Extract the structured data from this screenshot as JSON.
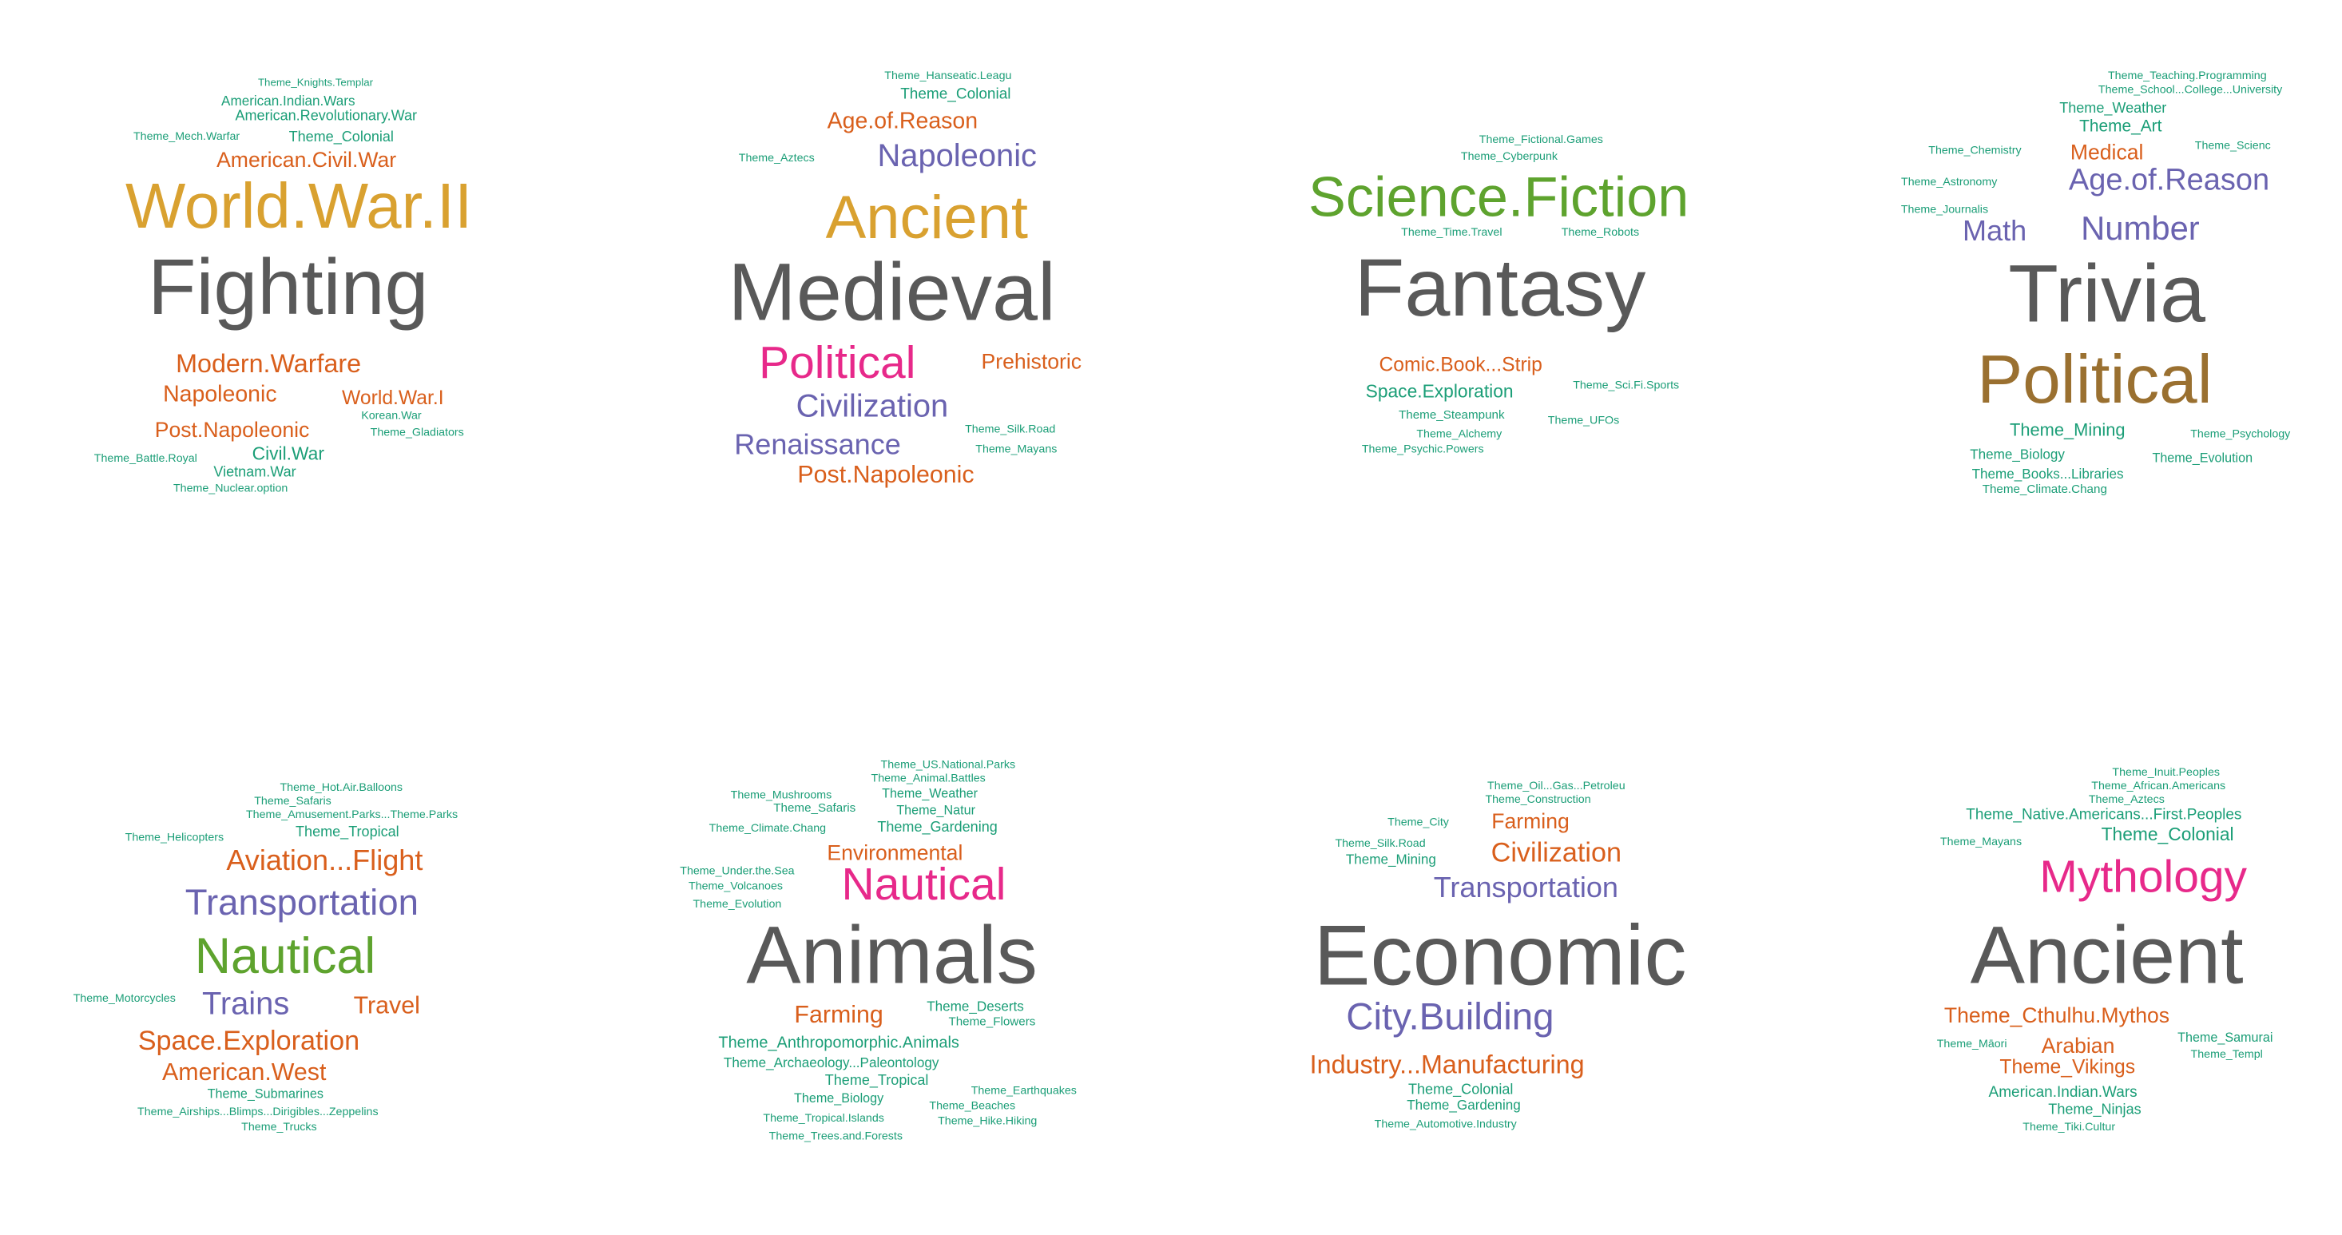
{
  "colors": {
    "gray": "#595959",
    "gold": "#d9a130",
    "orange": "#d95f1c",
    "teal": "#1b9e77",
    "purple": "#6a63b0",
    "magenta": "#e7298a",
    "green": "#5ea32e",
    "brown": "#9a7030"
  },
  "clouds": [
    {
      "name": "Fighting",
      "words": [
        {
          "t": "Theme_Knights.Templar",
          "s": 7,
          "c": "teal"
        },
        {
          "t": "American.Indian.Wars",
          "s": 9,
          "c": "teal"
        },
        {
          "t": "American.Revolutionary.War",
          "s": 9.5,
          "c": "teal"
        },
        {
          "t": "Theme_Mech.Warfar",
          "s": 7.5,
          "c": "teal"
        },
        {
          "t": "Theme_Colonial",
          "s": 9.5,
          "c": "teal"
        },
        {
          "t": "American.Civil.War",
          "s": 14,
          "c": "orange"
        },
        {
          "t": "World.War.II",
          "s": 42,
          "c": "gold"
        },
        {
          "t": "Fighting",
          "s": 52,
          "c": "gray"
        },
        {
          "t": "Modern.Warfare",
          "s": 17,
          "c": "orange"
        },
        {
          "t": "Napoleonic",
          "s": 15,
          "c": "orange"
        },
        {
          "t": "World.War.I",
          "s": 13,
          "c": "orange"
        },
        {
          "t": "Korean.War",
          "s": 7.5,
          "c": "teal"
        },
        {
          "t": "Post.Napoleonic",
          "s": 14,
          "c": "orange"
        },
        {
          "t": "Theme_Gladiators",
          "s": 7.5,
          "c": "teal"
        },
        {
          "t": "Theme_Battle.Royal",
          "s": 7.5,
          "c": "teal"
        },
        {
          "t": "Civil.War",
          "s": 12,
          "c": "teal"
        },
        {
          "t": "Vietnam.War",
          "s": 9.5,
          "c": "teal"
        },
        {
          "t": "Theme_Nuclear.option",
          "s": 7.5,
          "c": "teal"
        }
      ]
    },
    {
      "name": "Medieval",
      "words": [
        {
          "t": "Theme_Hanseatic.Leagu",
          "s": 7.5,
          "c": "teal"
        },
        {
          "t": "Theme_Colonial",
          "s": 10,
          "c": "teal"
        },
        {
          "t": "Age.of.Reason",
          "s": 15,
          "c": "orange"
        },
        {
          "t": "Theme_Aztecs",
          "s": 7.5,
          "c": "teal"
        },
        {
          "t": "Napoleonic",
          "s": 21,
          "c": "purple"
        },
        {
          "t": "Ancient",
          "s": 40,
          "c": "gold"
        },
        {
          "t": "Medieval",
          "s": 54,
          "c": "gray"
        },
        {
          "t": "Political",
          "s": 30,
          "c": "magenta"
        },
        {
          "t": "Prehistoric",
          "s": 14,
          "c": "orange"
        },
        {
          "t": "Civilization",
          "s": 21,
          "c": "purple"
        },
        {
          "t": "Theme_Silk.Road",
          "s": 7.5,
          "c": "teal"
        },
        {
          "t": "Renaissance",
          "s": 19,
          "c": "purple"
        },
        {
          "t": "Theme_Mayans",
          "s": 7.5,
          "c": "teal"
        },
        {
          "t": "Post.Napoleonic",
          "s": 16,
          "c": "orange"
        }
      ]
    },
    {
      "name": "Fantasy",
      "words": [
        {
          "t": "Theme_Fictional.Games",
          "s": 7.5,
          "c": "teal"
        },
        {
          "t": "Theme_Cyberpunk",
          "s": 7.5,
          "c": "teal"
        },
        {
          "t": "Science.Fiction",
          "s": 37,
          "c": "green"
        },
        {
          "t": "Theme_Time.Travel",
          "s": 7.5,
          "c": "teal"
        },
        {
          "t": "Theme_Robots",
          "s": 7.5,
          "c": "teal"
        },
        {
          "t": "Fantasy",
          "s": 54,
          "c": "gray"
        },
        {
          "t": "Comic.Book...Strip",
          "s": 13,
          "c": "orange"
        },
        {
          "t": "Theme_Sci.Fi.Sports",
          "s": 7.5,
          "c": "teal"
        },
        {
          "t": "Space.Exploration",
          "s": 12,
          "c": "teal"
        },
        {
          "t": "Theme_Steampunk",
          "s": 8,
          "c": "teal"
        },
        {
          "t": "Theme_UFOs",
          "s": 7.5,
          "c": "teal"
        },
        {
          "t": "Theme_Alchemy",
          "s": 7.5,
          "c": "teal"
        },
        {
          "t": "Theme_Psychic.Powers",
          "s": 7.5,
          "c": "teal"
        }
      ]
    },
    {
      "name": "Trivia",
      "words": [
        {
          "t": "Theme_Teaching.Programming",
          "s": 7.5,
          "c": "teal"
        },
        {
          "t": "Theme_School...College...University",
          "s": 7.5,
          "c": "teal"
        },
        {
          "t": "Theme_Weather",
          "s": 9.5,
          "c": "teal"
        },
        {
          "t": "Theme_Art",
          "s": 11,
          "c": "teal"
        },
        {
          "t": "Theme_Chemistry",
          "s": 7.5,
          "c": "teal"
        },
        {
          "t": "Medical",
          "s": 14,
          "c": "orange"
        },
        {
          "t": "Theme_Scienc",
          "s": 7.5,
          "c": "teal"
        },
        {
          "t": "Theme_Astronomy",
          "s": 7.5,
          "c": "teal"
        },
        {
          "t": "Age.of.Reason",
          "s": 20,
          "c": "purple"
        },
        {
          "t": "Theme_Journalis",
          "s": 7.5,
          "c": "teal"
        },
        {
          "t": "Math",
          "s": 19,
          "c": "purple"
        },
        {
          "t": "Number",
          "s": 22,
          "c": "purple"
        },
        {
          "t": "Trivia",
          "s": 54,
          "c": "gray"
        },
        {
          "t": "Political",
          "s": 45,
          "c": "brown"
        },
        {
          "t": "Theme_Mining",
          "s": 11.5,
          "c": "teal"
        },
        {
          "t": "Theme_Psychology",
          "s": 7.5,
          "c": "teal"
        },
        {
          "t": "Theme_Biology",
          "s": 9,
          "c": "teal"
        },
        {
          "t": "Theme_Evolution",
          "s": 8.5,
          "c": "teal"
        },
        {
          "t": "Theme_Books...Libraries",
          "s": 9,
          "c": "teal"
        },
        {
          "t": "Theme_Climate.Chang",
          "s": 8,
          "c": "teal"
        }
      ]
    },
    {
      "name": "Nautical",
      "words": [
        {
          "t": "Theme_Hot.Air.Balloons",
          "s": 7.5,
          "c": "teal"
        },
        {
          "t": "Theme_Safaris",
          "s": 7.5,
          "c": "teal"
        },
        {
          "t": "Theme_Amusement.Parks...Theme.Parks",
          "s": 7.5,
          "c": "teal"
        },
        {
          "t": "Theme_Helicopters",
          "s": 7.5,
          "c": "teal"
        },
        {
          "t": "Theme_Tropical",
          "s": 9.5,
          "c": "teal"
        },
        {
          "t": "Aviation...Flight",
          "s": 19,
          "c": "orange"
        },
        {
          "t": "Transportation",
          "s": 24,
          "c": "purple"
        },
        {
          "t": "Nautical",
          "s": 33,
          "c": "green"
        },
        {
          "t": "Theme_Motorcycles",
          "s": 7.5,
          "c": "teal"
        },
        {
          "t": "Trains",
          "s": 21,
          "c": "purple"
        },
        {
          "t": "Travel",
          "s": 16,
          "c": "orange"
        },
        {
          "t": "Space.Exploration",
          "s": 18,
          "c": "orange"
        },
        {
          "t": "American.West",
          "s": 16,
          "c": "orange"
        },
        {
          "t": "Theme_Submarines",
          "s": 8.5,
          "c": "teal"
        },
        {
          "t": "Theme_Airships...Blimps...Dirigibles...Zeppelins",
          "s": 7.5,
          "c": "teal"
        },
        {
          "t": "Theme_Trucks",
          "s": 7.5,
          "c": "teal"
        }
      ]
    },
    {
      "name": "Animals",
      "words": [
        {
          "t": "Theme_US.National.Parks",
          "s": 7.5,
          "c": "teal"
        },
        {
          "t": "Theme_Animal.Battles",
          "s": 7.5,
          "c": "teal"
        },
        {
          "t": "Theme_Mushrooms",
          "s": 7.5,
          "c": "teal"
        },
        {
          "t": "Theme_Weather",
          "s": 8.5,
          "c": "teal"
        },
        {
          "t": "Theme_Safaris",
          "s": 8,
          "c": "teal"
        },
        {
          "t": "Theme_Natur",
          "s": 8.5,
          "c": "teal"
        },
        {
          "t": "Theme_Climate.Chang",
          "s": 7.5,
          "c": "teal"
        },
        {
          "t": "Theme_Gardening",
          "s": 9.5,
          "c": "teal"
        },
        {
          "t": "Environmental",
          "s": 14,
          "c": "orange"
        },
        {
          "t": "Theme_Under.the.Sea",
          "s": 7.5,
          "c": "teal"
        },
        {
          "t": "Nautical",
          "s": 30,
          "c": "magenta"
        },
        {
          "t": "Theme_Volcanoes",
          "s": 7.5,
          "c": "teal"
        },
        {
          "t": "Theme_Evolution",
          "s": 7.5,
          "c": "teal"
        },
        {
          "t": "Animals",
          "s": 54,
          "c": "gray"
        },
        {
          "t": "Farming",
          "s": 16,
          "c": "orange"
        },
        {
          "t": "Theme_Deserts",
          "s": 9,
          "c": "teal"
        },
        {
          "t": "Theme_Flowers",
          "s": 8,
          "c": "teal"
        },
        {
          "t": "Theme_Anthropomorphic.Animals",
          "s": 10.5,
          "c": "teal"
        },
        {
          "t": "Theme_Archaeology...Paleontology",
          "s": 9,
          "c": "teal"
        },
        {
          "t": "Theme_Tropical",
          "s": 9.5,
          "c": "teal"
        },
        {
          "t": "Theme_Earthquakes",
          "s": 7.5,
          "c": "teal"
        },
        {
          "t": "Theme_Biology",
          "s": 8.5,
          "c": "teal"
        },
        {
          "t": "Theme_Beaches",
          "s": 7.5,
          "c": "teal"
        },
        {
          "t": "Theme_Tropical.Islands",
          "s": 7.5,
          "c": "teal"
        },
        {
          "t": "Theme_Hike.Hiking",
          "s": 7.5,
          "c": "teal"
        },
        {
          "t": "Theme_Trees.and.Forests",
          "s": 7.5,
          "c": "teal"
        }
      ]
    },
    {
      "name": "Economic",
      "words": [
        {
          "t": "Theme_Oil...Gas...Petroleu",
          "s": 7.5,
          "c": "teal"
        },
        {
          "t": "Theme_Construction",
          "s": 7.5,
          "c": "teal"
        },
        {
          "t": "Theme_City",
          "s": 7.5,
          "c": "teal"
        },
        {
          "t": "Farming",
          "s": 14,
          "c": "orange"
        },
        {
          "t": "Theme_Silk.Road",
          "s": 7.5,
          "c": "teal"
        },
        {
          "t": "Civilization",
          "s": 18,
          "c": "orange"
        },
        {
          "t": "Theme_Mining",
          "s": 9,
          "c": "teal"
        },
        {
          "t": "Transportation",
          "s": 19,
          "c": "purple"
        },
        {
          "t": "Economic",
          "s": 56,
          "c": "gray"
        },
        {
          "t": "City.Building",
          "s": 25,
          "c": "purple"
        },
        {
          "t": "Industry...Manufacturing",
          "s": 17,
          "c": "orange"
        },
        {
          "t": "Theme_Colonial",
          "s": 9.5,
          "c": "teal"
        },
        {
          "t": "Theme_Gardening",
          "s": 9,
          "c": "teal"
        },
        {
          "t": "Theme_Automotive.Industry",
          "s": 7.5,
          "c": "teal"
        }
      ]
    },
    {
      "name": "Ancient",
      "words": [
        {
          "t": "Theme_Inuit.Peoples",
          "s": 7.5,
          "c": "teal"
        },
        {
          "t": "Theme_African.Americans",
          "s": 7.5,
          "c": "teal"
        },
        {
          "t": "Theme_Aztecs",
          "s": 7.5,
          "c": "teal"
        },
        {
          "t": "Theme_Native.Americans...First.Peoples",
          "s": 10,
          "c": "teal"
        },
        {
          "t": "Theme_Mayans",
          "s": 7.5,
          "c": "teal"
        },
        {
          "t": "Theme_Colonial",
          "s": 12,
          "c": "teal"
        },
        {
          "t": "Mythology",
          "s": 30,
          "c": "magenta"
        },
        {
          "t": "Ancient",
          "s": 54,
          "c": "gray"
        },
        {
          "t": "Theme_Cthulhu.Mythos",
          "s": 14,
          "c": "orange"
        },
        {
          "t": "Theme_Māori",
          "s": 7.5,
          "c": "teal"
        },
        {
          "t": "Arabian",
          "s": 14,
          "c": "orange"
        },
        {
          "t": "Theme_Samurai",
          "s": 8.5,
          "c": "teal"
        },
        {
          "t": "Theme_Vikings",
          "s": 13,
          "c": "orange"
        },
        {
          "t": "Theme_Templ",
          "s": 7.5,
          "c": "teal"
        },
        {
          "t": "American.Indian.Wars",
          "s": 10,
          "c": "teal"
        },
        {
          "t": "Theme_Ninjas",
          "s": 9.5,
          "c": "teal"
        },
        {
          "t": "Theme_Tiki.Cultur",
          "s": 7.5,
          "c": "teal"
        }
      ]
    }
  ]
}
